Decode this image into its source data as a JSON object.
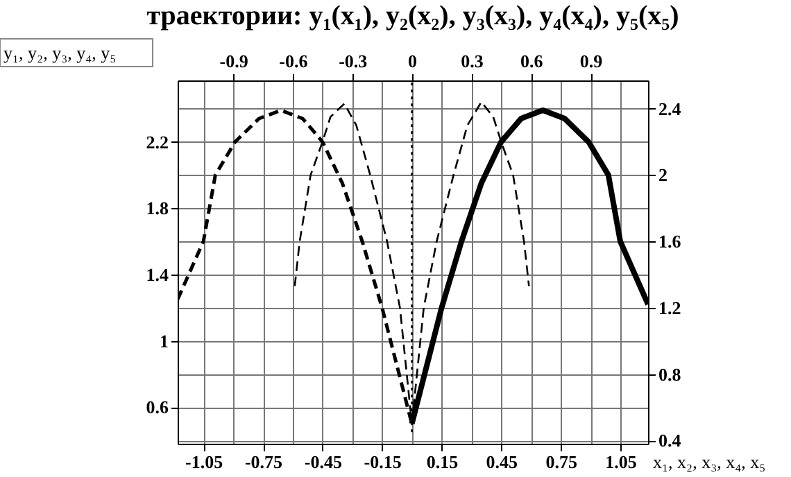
{
  "chart_data": {
    "type": "line",
    "title": "траектории: y₁(x₁), y₂(x₂), y₃(x₃), y₄(x₄), y₅(x₅)",
    "xlabel": "x₁, x₂, x₃, x₄, x₅",
    "ylabel": "y₁, y₂, y₃, y₄, y₅",
    "xlim": [
      -1.18,
      1.19
    ],
    "xticks": [
      -1.05,
      -0.75,
      -0.45,
      -0.15,
      0.15,
      0.45,
      0.75,
      1.05
    ],
    "x2lim": [
      -1.18,
      1.19
    ],
    "x2ticks": [
      -0.9,
      -0.6,
      -0.3,
      0,
      0.3,
      0.6,
      0.9
    ],
    "ylim": [
      0.38,
      2.57
    ],
    "yticks": [
      0.6,
      1,
      1.4,
      1.8,
      2.2
    ],
    "y2lim": [
      0.38,
      2.57
    ],
    "y2ticks": [
      0.4,
      0.8,
      1.2,
      1.6,
      2,
      2.4
    ],
    "grid": true,
    "series": [
      {
        "color": "#000000",
        "line_style": "solid",
        "x": [
          0,
          0.15,
          0.25,
          0.35,
          0.45,
          0.55,
          0.66,
          0.77,
          0.89,
          0.99,
          1.05,
          1.19
        ],
        "values": [
          0.5,
          1.2,
          1.6,
          1.95,
          2.2,
          2.34,
          2.39,
          2.34,
          2.2,
          2.0,
          1.6,
          1.22
        ]
      },
      {
        "color": "#000000",
        "line_style": "dashed",
        "x": [
          -1.18,
          -1.05,
          -0.99,
          -0.89,
          -0.77,
          -0.66,
          -0.55,
          -0.45,
          -0.35,
          -0.25,
          -0.15,
          0
        ],
        "values": [
          1.25,
          1.6,
          2.0,
          2.2,
          2.34,
          2.39,
          2.34,
          2.2,
          1.95,
          1.6,
          1.2,
          0.5
        ]
      },
      {
        "color": "#000000",
        "line_style": "dashed",
        "x": [
          0,
          0.06,
          0.125,
          0.21,
          0.28,
          0.35,
          0.41,
          0.45,
          0.51,
          0.565,
          0.59
        ],
        "values": [
          0.5,
          1.2,
          1.6,
          2.0,
          2.3,
          2.44,
          2.35,
          2.2,
          2.0,
          1.6,
          1.33
        ]
      },
      {
        "color": "#000000",
        "line_style": "dashed",
        "x": [
          -0.59,
          -0.565,
          -0.51,
          -0.45,
          -0.41,
          -0.34,
          -0.28,
          -0.21,
          -0.125,
          -0.06,
          0
        ],
        "values": [
          1.33,
          1.6,
          2.0,
          2.2,
          2.35,
          2.43,
          2.3,
          2.0,
          1.6,
          1.2,
          0.5
        ]
      },
      {
        "color": "#000000",
        "line_style": "dotted",
        "x": [
          0,
          0
        ],
        "values": [
          0.45,
          2.57
        ]
      }
    ]
  }
}
